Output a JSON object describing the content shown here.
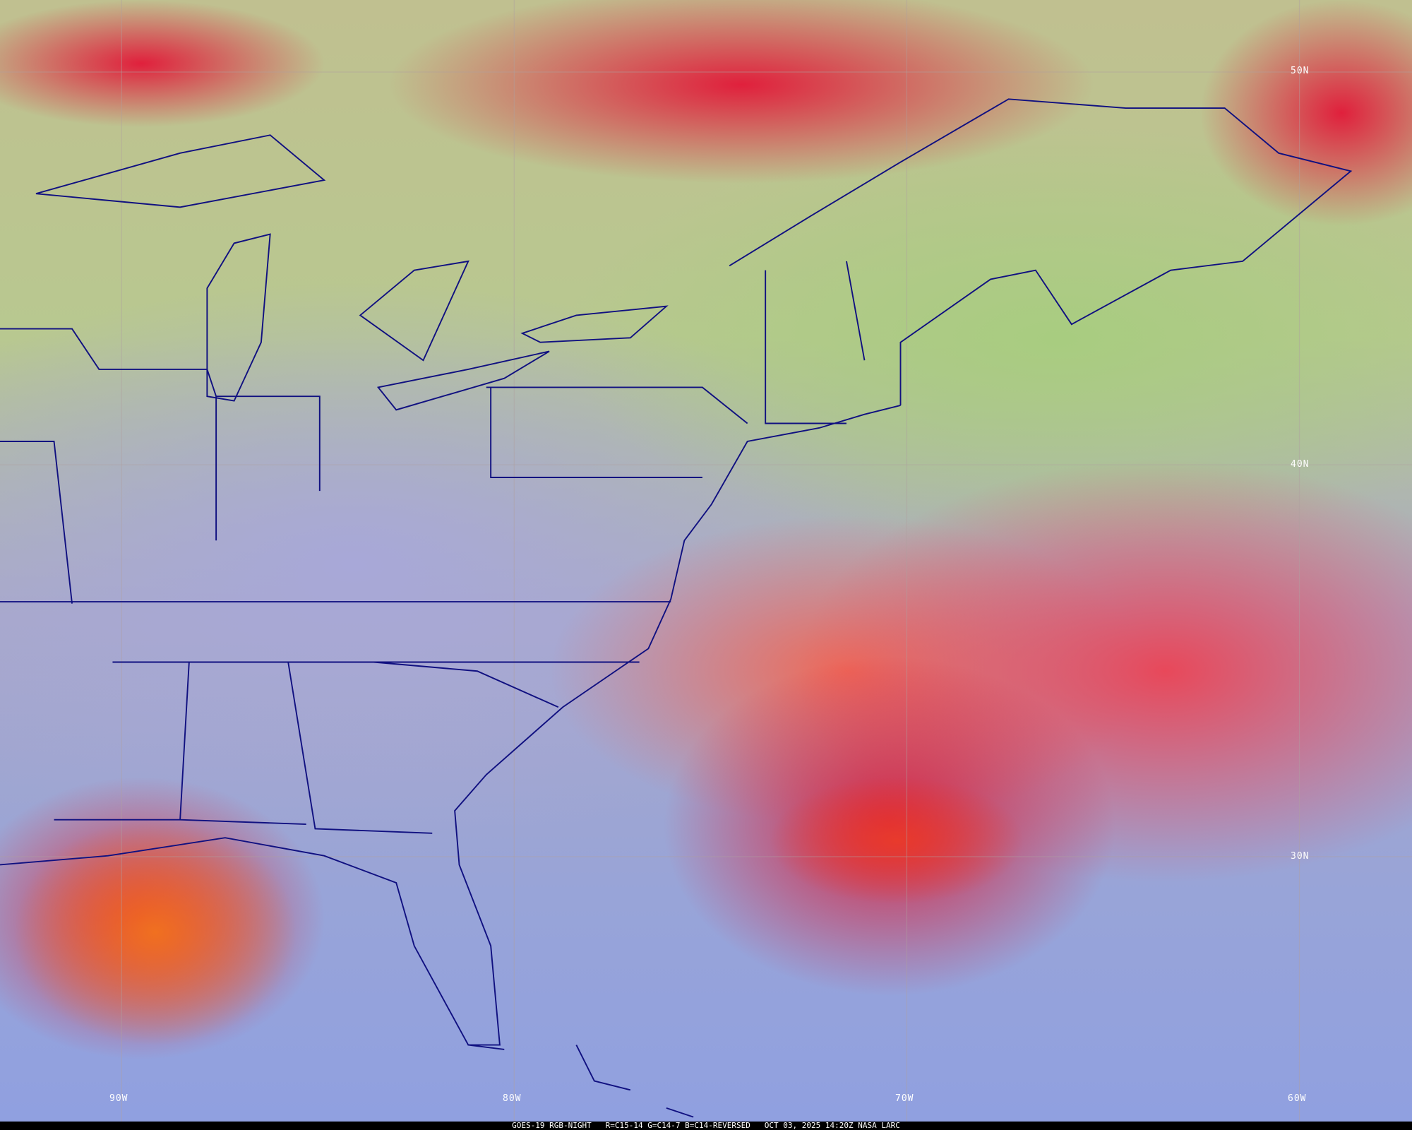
{
  "map": {
    "colors": {
      "coastline": "#101080",
      "graticule": "#b0a0a0",
      "caption_bg": "#000000",
      "caption_text": "#ffffff"
    },
    "latitude_labels": [
      "50N",
      "40N",
      "30N"
    ],
    "longitude_labels": [
      "90W",
      "80W",
      "70W",
      "60W"
    ]
  },
  "caption": {
    "satellite": "GOES-19",
    "product": "RGB-NIGHT",
    "recipe": "R=C15-14 G=C14-7 B=C14-REVERSED",
    "datetime": "OCT 03, 2025 14:20Z",
    "source": "NASA LARC"
  }
}
